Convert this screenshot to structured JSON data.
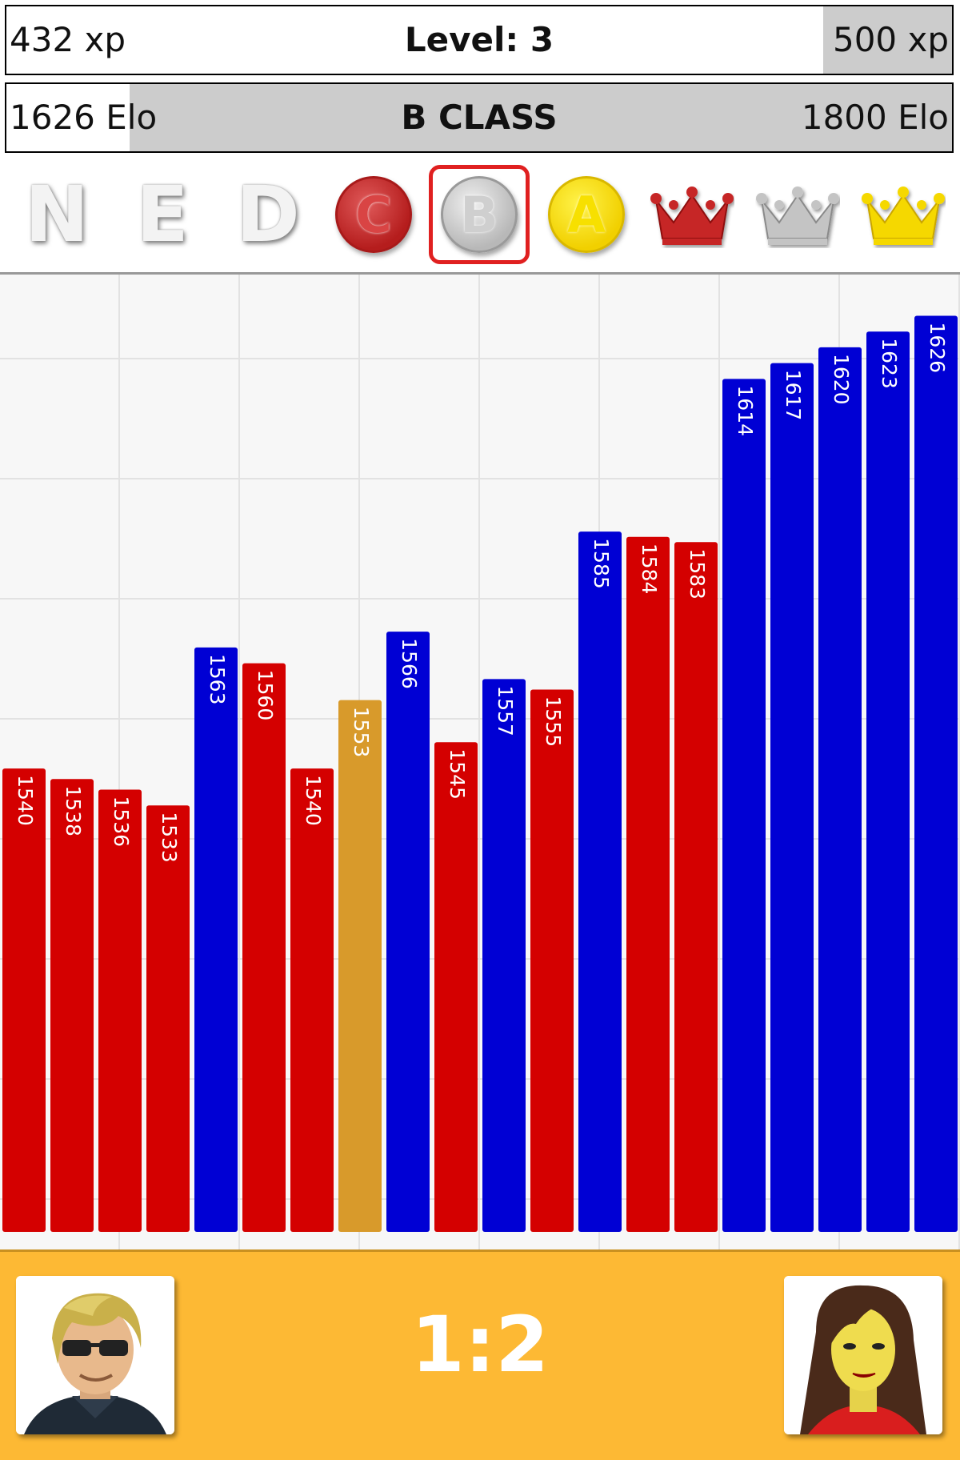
{
  "progress": {
    "xp": {
      "current": "432 xp",
      "level": "Level: 3",
      "target": "500 xp",
      "value": 432,
      "max": 500
    },
    "elo": {
      "current": "1626 Elo",
      "class": "B CLASS",
      "target": "1800 Elo"
    }
  },
  "ranks": {
    "items": [
      {
        "label": "N",
        "type": "letter"
      },
      {
        "label": "E",
        "type": "letter"
      },
      {
        "label": "D",
        "type": "letter"
      },
      {
        "label": "C",
        "type": "coin",
        "color": "#c62828"
      },
      {
        "label": "B",
        "type": "coin",
        "color": "#c0c0c0",
        "selected": true
      },
      {
        "label": "A",
        "type": "coin",
        "color": "#f5e000"
      },
      {
        "label": "",
        "type": "crown",
        "color": "#c62828",
        "icon": "red-crown-icon"
      },
      {
        "label": "",
        "type": "crown",
        "color": "#bdbdbd",
        "icon": "silver-crown-icon"
      },
      {
        "label": "",
        "type": "crown",
        "color": "#f5d800",
        "icon": "gold-crown-icon"
      }
    ]
  },
  "chart_data": {
    "type": "bar",
    "values": [
      1540,
      1538,
      1536,
      1533,
      1563,
      1560,
      1540,
      1553,
      1566,
      1545,
      1557,
      1555,
      1585,
      1584,
      1583,
      1614,
      1617,
      1620,
      1623,
      1626
    ],
    "labels": [
      "1540",
      "1538",
      "1536",
      "1533",
      "1563",
      "1560",
      "1540",
      "1553",
      "1566",
      "1545",
      "1557",
      "1555",
      "1585",
      "1584",
      "1583",
      "1614",
      "1617",
      "1620",
      "1623",
      "1626"
    ],
    "colors": [
      "#d40000",
      "#d40000",
      "#d40000",
      "#d40000",
      "#0000d4",
      "#d40000",
      "#d40000",
      "#d89a2b",
      "#0000d4",
      "#d40000",
      "#0000d4",
      "#d40000",
      "#0000d4",
      "#d40000",
      "#d40000",
      "#0000d4",
      "#0000d4",
      "#0000d4",
      "#0000d4",
      "#0000d4"
    ],
    "grid": true
  },
  "match": {
    "score": "1:2"
  },
  "players": {
    "left": {
      "icon": "player-avatar-blond-sunglasses-icon"
    },
    "right": {
      "icon": "opponent-avatar-dark-hair-woman-icon"
    }
  }
}
